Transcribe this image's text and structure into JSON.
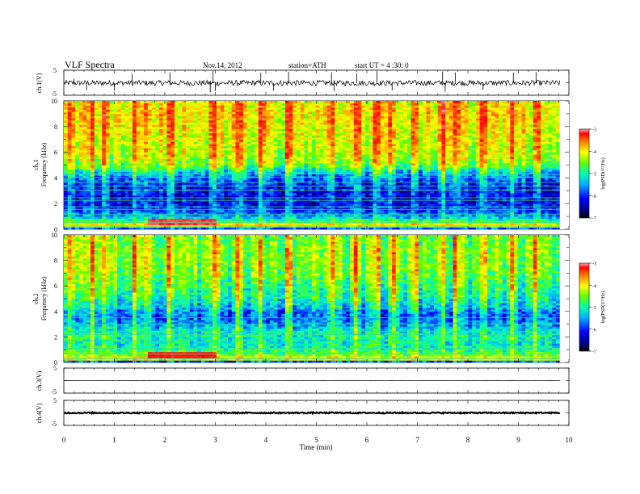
{
  "header": {
    "title": "VLF  Spectra",
    "date": "Nov.14, 2012",
    "station": "station=ATH",
    "start": "start  UT  =   4  :30: 0"
  },
  "chart_data": [
    {
      "type": "line",
      "panel": "ch1-waveform",
      "ylabel": "ch.1(V)",
      "ylim": [
        -5,
        5
      ],
      "yticks": [
        "5",
        "-5"
      ],
      "xlim": [
        0,
        10
      ],
      "data_end_min": 9.82,
      "baseline": -0.1,
      "noise_amplitude": 1.1,
      "spikes": [
        {
          "x": 0.2,
          "y": 1.5
        },
        {
          "x": 1.35,
          "y": 3.5
        },
        {
          "x": 2.1,
          "y": 4.2
        },
        {
          "x": 2.95,
          "y": 4.8
        },
        {
          "x": 3.9,
          "y": 4.0
        },
        {
          "x": 4.45,
          "y": 4.4
        },
        {
          "x": 5.3,
          "y": 4.2
        },
        {
          "x": 5.8,
          "y": 3.8
        },
        {
          "x": 6.2,
          "y": 4.3
        },
        {
          "x": 7.5,
          "y": 4.5
        },
        {
          "x": 7.75,
          "y": 4.1
        },
        {
          "x": 8.9,
          "y": 4.0
        },
        {
          "x": 9.35,
          "y": 4.2
        },
        {
          "x": 0.45,
          "y": -3.0
        },
        {
          "x": 1.0,
          "y": -3.2
        },
        {
          "x": 2.9,
          "y": -3.8
        },
        {
          "x": 3.0,
          "y": -3.3
        },
        {
          "x": 4.15,
          "y": -3.2
        },
        {
          "x": 5.35,
          "y": -3.5
        },
        {
          "x": 6.5,
          "y": -3.0
        },
        {
          "x": 7.55,
          "y": -3.6
        },
        {
          "x": 8.3,
          "y": -2.8
        }
      ]
    },
    {
      "type": "heatmap",
      "panel": "ch1-spectrogram",
      "ylabel_top": "ch.1",
      "ylabel": "Frequency  (kHz)",
      "ylim": [
        0,
        10
      ],
      "yticks": [
        "0",
        "2",
        "4",
        "6",
        "8",
        "10"
      ],
      "xlim": [
        0,
        10
      ],
      "data_end_min": 9.82,
      "colorbar": {
        "label": "log(PSD(V²/Hz)",
        "range": [
          -7,
          -3
        ],
        "ticks": [
          "-3",
          "-4",
          "-5",
          "-6",
          "-7"
        ]
      },
      "log_psd_profile": {
        "freq_khz": [
          0.0,
          0.3,
          0.6,
          1.0,
          1.5,
          2.0,
          2.5,
          3.0,
          3.5,
          4.0,
          4.5,
          5.0,
          5.5,
          6.0,
          7.0,
          8.0,
          9.0,
          10.0
        ],
        "value": [
          -6.8,
          -4.3,
          -5.2,
          -5.9,
          -6.3,
          -6.4,
          -6.5,
          -6.4,
          -6.3,
          -6.1,
          -5.7,
          -5.1,
          -4.9,
          -4.8,
          -4.7,
          -4.6,
          -4.5,
          -4.6
        ]
      },
      "hot_band": {
        "freq_khz": 0.55,
        "x_from_min": 1.65,
        "x_to_min": 3.0,
        "value": -3.4
      },
      "lines_khz": [
        0.25,
        0.55,
        1.15,
        1.55,
        1.75,
        2.25,
        2.45,
        3.05,
        3.35,
        3.65,
        4.05,
        4.3
      ],
      "impulsive_min": [
        0.15,
        0.55,
        0.8,
        1.4,
        1.65,
        2.1,
        2.95,
        3.0,
        3.45,
        3.9,
        4.45,
        5.3,
        5.8,
        6.2,
        6.5,
        6.95,
        7.5,
        7.75,
        8.3,
        8.9,
        9.35
      ]
    },
    {
      "type": "heatmap",
      "panel": "ch2-spectrogram",
      "ylabel_top": "ch.2",
      "ylabel": "Frequency  (kHz)",
      "ylim": [
        0,
        10
      ],
      "yticks": [
        "0",
        "2",
        "4",
        "6",
        "8",
        "10"
      ],
      "xlim": [
        0,
        10
      ],
      "data_end_min": 9.82,
      "colorbar": {
        "label": "log(PSD(V²/Hz)",
        "range": [
          -7,
          -3
        ],
        "ticks": [
          "-3",
          "-4",
          "-5",
          "-6",
          "-7"
        ]
      },
      "log_psd_profile": {
        "freq_khz": [
          0.0,
          0.3,
          0.6,
          1.0,
          1.5,
          2.0,
          2.5,
          3.0,
          3.5,
          4.0,
          4.5,
          5.0,
          5.5,
          6.0,
          7.0,
          8.0,
          9.0,
          10.0
        ],
        "value": [
          -6.8,
          -4.4,
          -5.1,
          -5.4,
          -5.6,
          -5.5,
          -5.6,
          -5.9,
          -6.1,
          -6.0,
          -5.7,
          -5.5,
          -5.4,
          -5.3,
          -5.1,
          -5.0,
          -5.0,
          -5.1
        ]
      },
      "hot_band": {
        "freq_khz": 0.6,
        "x_from_min": 1.65,
        "x_to_min": 3.0,
        "value": -3.6
      },
      "lines_khz": [
        0.3,
        0.65,
        1.1,
        1.7,
        2.2,
        2.45,
        3.0,
        3.5,
        4.3,
        4.75
      ],
      "impulsive_min": [
        0.15,
        0.55,
        0.8,
        1.4,
        1.65,
        2.1,
        2.95,
        3.0,
        3.45,
        3.9,
        4.45,
        5.3,
        5.8,
        6.2,
        6.5,
        6.95,
        7.5,
        7.75,
        8.3,
        8.9,
        9.35
      ]
    },
    {
      "type": "line",
      "panel": "ch3-waveform",
      "ylabel": "ch.3(V)",
      "ylim": [
        -5,
        5
      ],
      "yticks": [
        "5",
        "-5"
      ],
      "xlim": [
        0,
        10
      ],
      "data_end_min": 9.82,
      "baseline": 0.0,
      "noise_amplitude": 0.05
    },
    {
      "type": "line",
      "panel": "ch4-waveform",
      "ylabel": "ch.4(V)",
      "ylim": [
        -5,
        5
      ],
      "yticks": [
        "5",
        "-5"
      ],
      "xlim": [
        0,
        10
      ],
      "data_end_min": 9.82,
      "baseline": 0.0,
      "noise_amplitude": 0.25
    }
  ],
  "xaxis": {
    "label": "Time  (min)",
    "ticks": [
      "0",
      "1",
      "2",
      "3",
      "4",
      "5",
      "6",
      "7",
      "8",
      "9",
      "10"
    ]
  }
}
